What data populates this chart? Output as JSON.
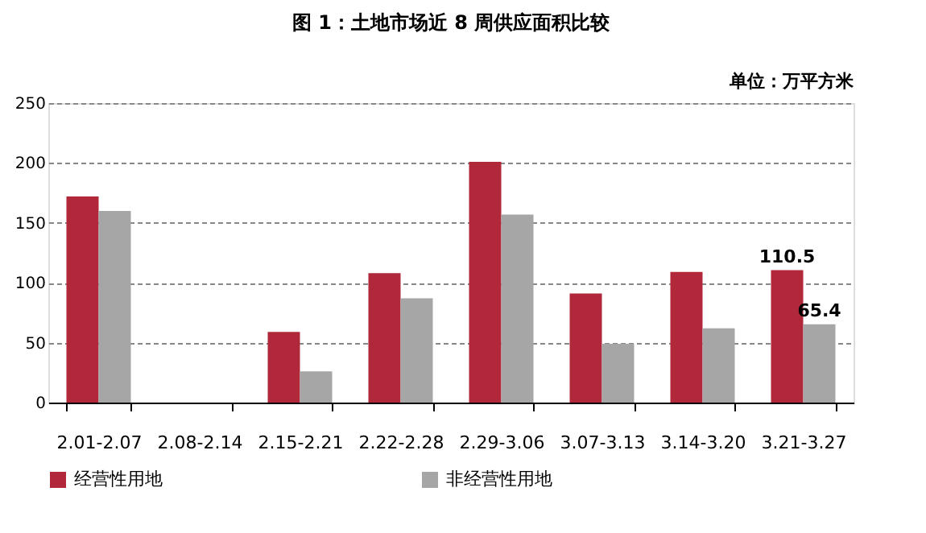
{
  "chart_data": {
    "type": "bar",
    "title": "图 1：土地市场近 8 周供应面积比较",
    "annotations": [
      "单位：万平方米"
    ],
    "categories": [
      "2.01-2.07",
      "2.08-2.14",
      "2.15-2.21",
      "2.22-2.28",
      "2.29-3.06",
      "3.07-3.13",
      "3.14-3.20",
      "3.21-3.27"
    ],
    "series": [
      {
        "name": "经营性用地",
        "color": "#b0283a",
        "values": [
          172,
          0,
          59,
          108,
          201,
          91,
          109,
          110.5
        ],
        "value_labels": [
          null,
          null,
          null,
          null,
          null,
          null,
          null,
          "110.5"
        ]
      },
      {
        "name": "非经营性用地",
        "color": "#a6a6a6",
        "values": [
          160,
          0,
          26,
          87,
          157,
          49,
          62,
          65.4
        ],
        "value_labels": [
          null,
          null,
          null,
          null,
          null,
          null,
          null,
          "65.4"
        ]
      }
    ],
    "ylim": [
      0,
      250
    ],
    "yticks": [
      0,
      50,
      100,
      150,
      200,
      250
    ],
    "grid": "y",
    "legend": "bottom"
  }
}
